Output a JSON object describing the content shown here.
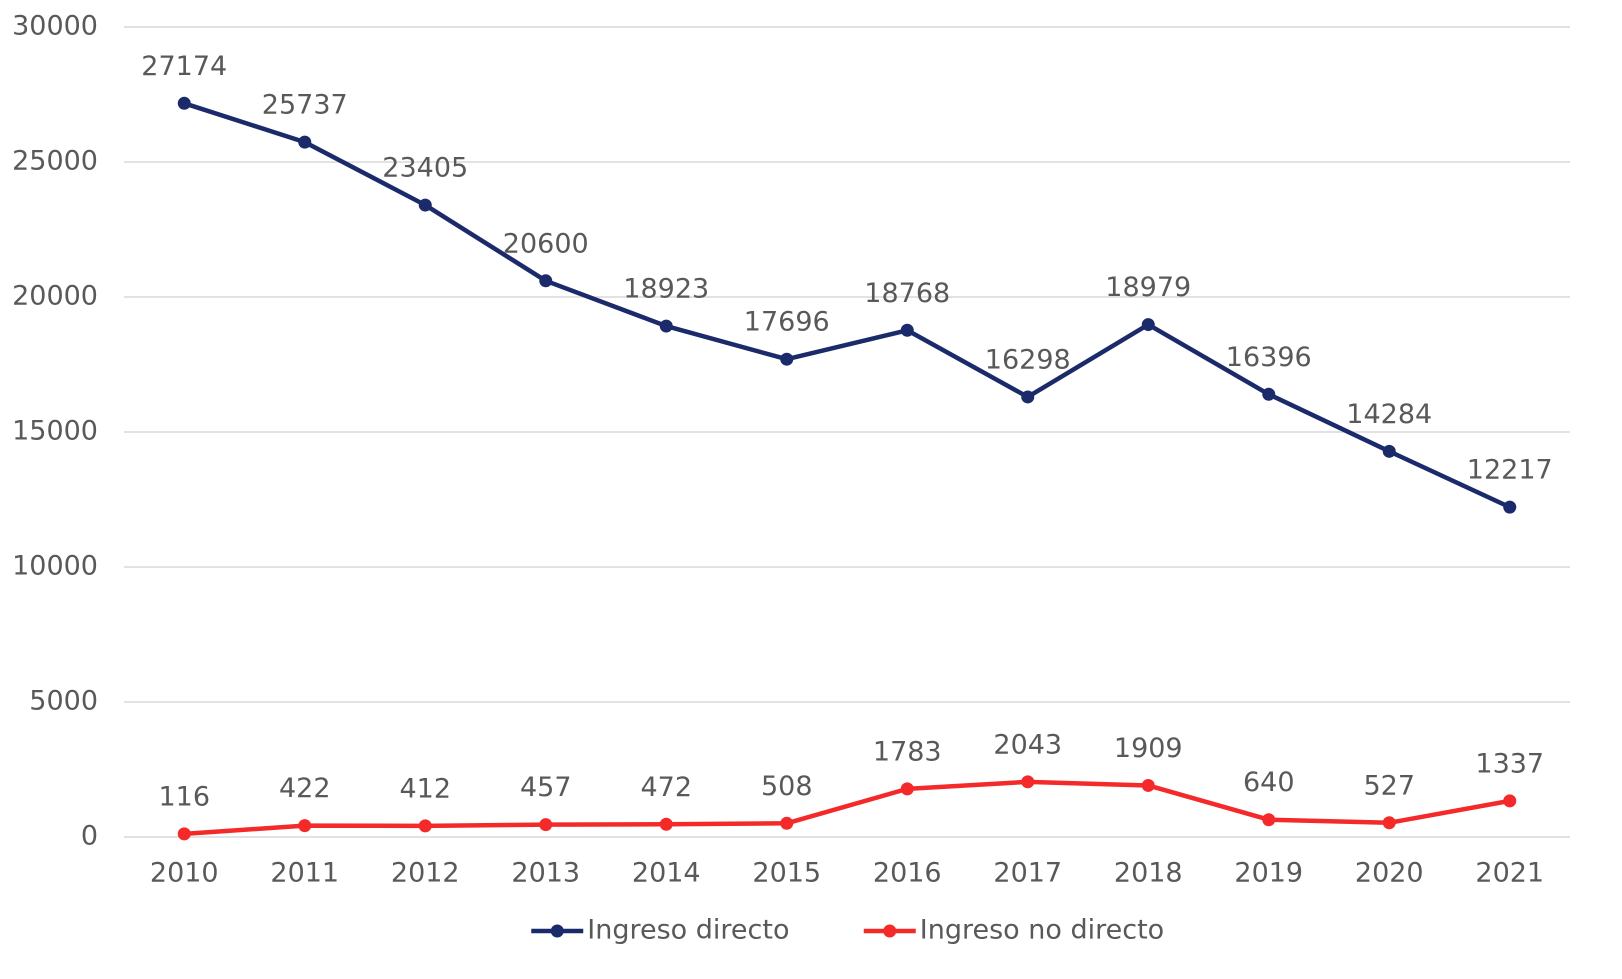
{
  "chart_data": {
    "type": "line",
    "categories": [
      "2010",
      "2011",
      "2012",
      "2013",
      "2014",
      "2015",
      "2016",
      "2017",
      "2018",
      "2019",
      "2020",
      "2021"
    ],
    "series": [
      {
        "name": "Ingreso directo",
        "color": "#1b2a6b",
        "values": [
          27174,
          25737,
          23405,
          20600,
          18923,
          17696,
          18768,
          16298,
          18979,
          16396,
          14284,
          12217
        ]
      },
      {
        "name": "Ingreso no directo",
        "color": "#f42a2a",
        "values": [
          116,
          422,
          412,
          457,
          472,
          508,
          1783,
          2043,
          1909,
          640,
          527,
          1337
        ]
      }
    ],
    "ylim": [
      0,
      30000
    ],
    "yticks": [
      0,
      5000,
      10000,
      15000,
      20000,
      25000,
      30000
    ],
    "grid": true,
    "legend": "bottom"
  }
}
